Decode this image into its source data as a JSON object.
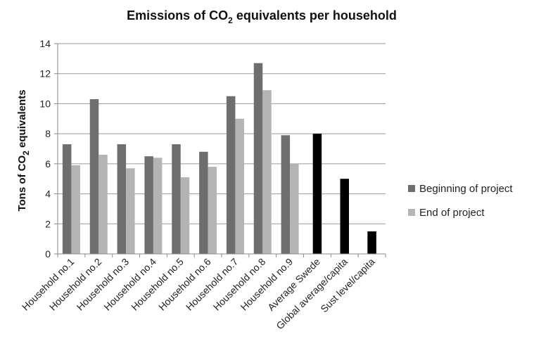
{
  "chart_data": {
    "type": "bar",
    "title_prefix": "Emissions of CO",
    "title_subscript": "2",
    "title_suffix": " equivalents per household",
    "ylabel_prefix": "Tons of CO",
    "ylabel_subscript": "2",
    "ylabel_suffix": " equivalents",
    "xlabel": "",
    "ylim": [
      0,
      14
    ],
    "yticks": [
      0,
      2,
      4,
      6,
      8,
      10,
      12,
      14
    ],
    "grid": true,
    "legend_position": "right",
    "categories": [
      "Household no.1",
      "Household no.2",
      "Household no.3",
      "Household no.4",
      "Household no.5",
      "Household no.6",
      "Household no.7",
      "Household no.8",
      "Household no.9",
      "Average Swede",
      "Global average/capita",
      "Sust level/capita"
    ],
    "series": [
      {
        "name": "Beginning of project",
        "color": "#6e6e6e",
        "values": [
          7.3,
          10.3,
          7.3,
          6.5,
          7.3,
          6.8,
          10.5,
          12.7,
          7.9,
          null,
          null,
          null
        ]
      },
      {
        "name": "End of project",
        "color": "#b4b4b4",
        "values": [
          5.9,
          6.6,
          5.7,
          6.4,
          5.1,
          5.8,
          9.0,
          10.9,
          6.0,
          null,
          null,
          null
        ]
      },
      {
        "color": "#000000",
        "values": [
          null,
          null,
          null,
          null,
          null,
          null,
          null,
          null,
          null,
          8.0,
          5.0,
          1.5
        ]
      }
    ]
  }
}
